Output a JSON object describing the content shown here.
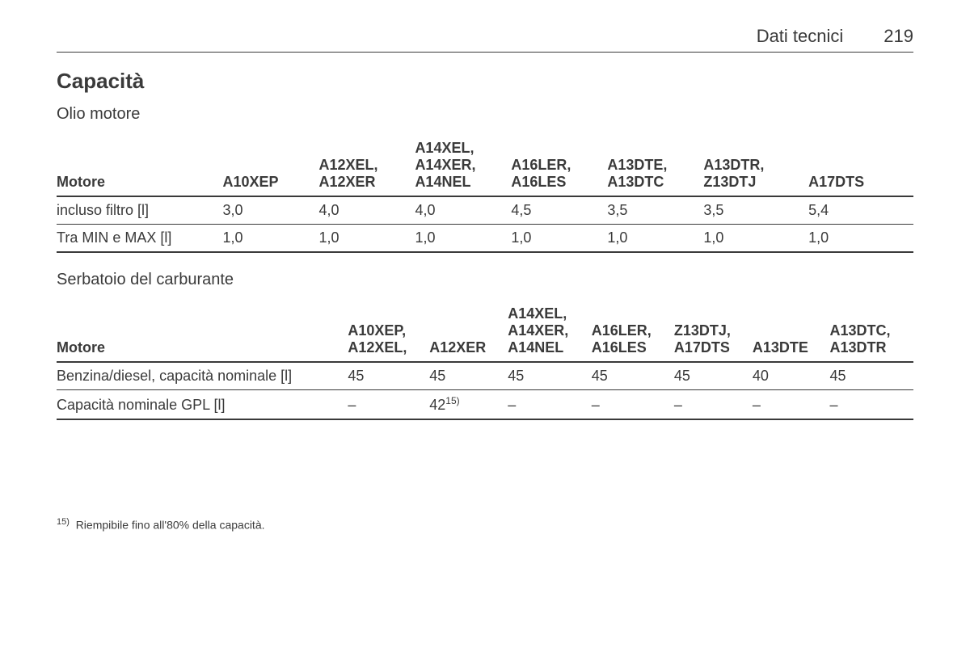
{
  "header": {
    "section": "Dati tecnici",
    "page": "219"
  },
  "title": "Capacità",
  "table1": {
    "subtitle": "Olio motore",
    "headers": [
      "Motore",
      "A10XEP",
      "A12XEL, A12XER",
      "A14XEL, A14XER, A14NEL",
      "A16LER, A16LES",
      "A13DTE, A13DTC",
      "A13DTR, Z13DTJ",
      "A17DTS"
    ],
    "rows": [
      {
        "label": "incluso filtro [l]",
        "cells": [
          "3,0",
          "4,0",
          "4,0",
          "4,5",
          "3,5",
          "3,5",
          "5,4"
        ]
      },
      {
        "label": "Tra MIN e MAX [l]",
        "cells": [
          "1,0",
          "1,0",
          "1,0",
          "1,0",
          "1,0",
          "1,0",
          "1,0"
        ]
      }
    ]
  },
  "table2": {
    "subtitle": "Serbatoio del carburante",
    "headers": [
      "Motore",
      "A10XEP, A12XEL,",
      "A12XER",
      "A14XEL, A14XER, A14NEL",
      "A16LER, A16LES",
      "Z13DTJ, A17DTS",
      "A13DTE",
      "A13DTC, A13DTR"
    ],
    "rows": [
      {
        "label": "Benzina/diesel, capacità nominale [l]",
        "cells": [
          "45",
          "45",
          "45",
          "45",
          "45",
          "40",
          "45"
        ]
      },
      {
        "label": "Capacità nominale GPL [l]",
        "cells": [
          "–",
          "42",
          "–",
          "–",
          "–",
          "–",
          "–"
        ],
        "sup_col": 1,
        "sup_text": "15)"
      }
    ]
  },
  "footnote": {
    "marker": "15)",
    "text": "Riempibile fino all'80% della capacità."
  }
}
